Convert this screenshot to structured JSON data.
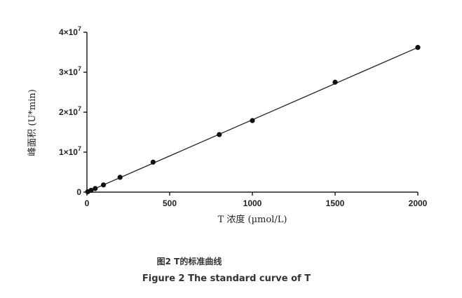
{
  "chart_data": {
    "type": "scatter",
    "title": "",
    "xlabel": "T 浓度 (µmol/L)",
    "ylabel": "峰面积 (U*min)",
    "xlim": [
      0,
      2000
    ],
    "ylim": [
      0,
      40000000
    ],
    "x_ticks": [
      0,
      500,
      1000,
      1500,
      2000
    ],
    "y_ticks": [
      {
        "value": 0,
        "label": "0"
      },
      {
        "value": 10000000,
        "label": "1×10",
        "exp": "7"
      },
      {
        "value": 20000000,
        "label": "2×10",
        "exp": "7"
      },
      {
        "value": 30000000,
        "label": "3×10",
        "exp": "7"
      },
      {
        "value": 40000000,
        "label": "4×10",
        "exp": "7"
      }
    ],
    "grid": false,
    "legend": "none",
    "colors": {
      "marker": "#111111",
      "line": "#222222",
      "axis": "#222222"
    },
    "series": [
      {
        "x": [
          5,
          25,
          50,
          100,
          200,
          400,
          800,
          1000,
          1500,
          2000
        ],
        "y": [
          100000,
          450000,
          900000,
          1800000,
          3700000,
          7500000,
          14400000,
          17900000,
          27500000,
          36200000
        ]
      }
    ],
    "fit_line": {
      "x": [
        0,
        2000
      ],
      "y": [
        0,
        36200000
      ]
    }
  },
  "captions": {
    "cn": "图2 T的标准曲线",
    "en": "Figure 2 The standard curve of T"
  }
}
